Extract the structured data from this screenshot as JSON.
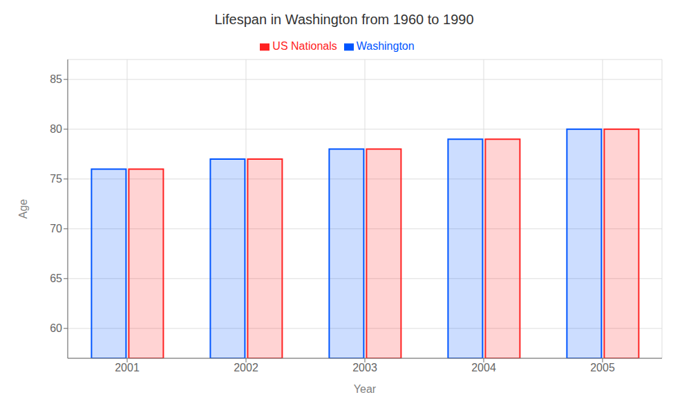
{
  "chart_data": {
    "type": "bar",
    "title": "Lifespan in Washington from 1960 to 1990",
    "xlabel": "Year",
    "ylabel": "Age",
    "categories": [
      "2001",
      "2002",
      "2003",
      "2004",
      "2005"
    ],
    "series": [
      {
        "name": "Washington",
        "color": "#0055ff",
        "values": [
          76,
          77,
          78,
          79,
          80
        ]
      },
      {
        "name": "US Nationals",
        "color": "#ff2222",
        "values": [
          76,
          77,
          78,
          79,
          80
        ]
      }
    ],
    "ylim": [
      57,
      87
    ],
    "yticks": [
      60,
      65,
      70,
      75,
      80,
      85
    ],
    "grid": true,
    "legend": "top"
  }
}
